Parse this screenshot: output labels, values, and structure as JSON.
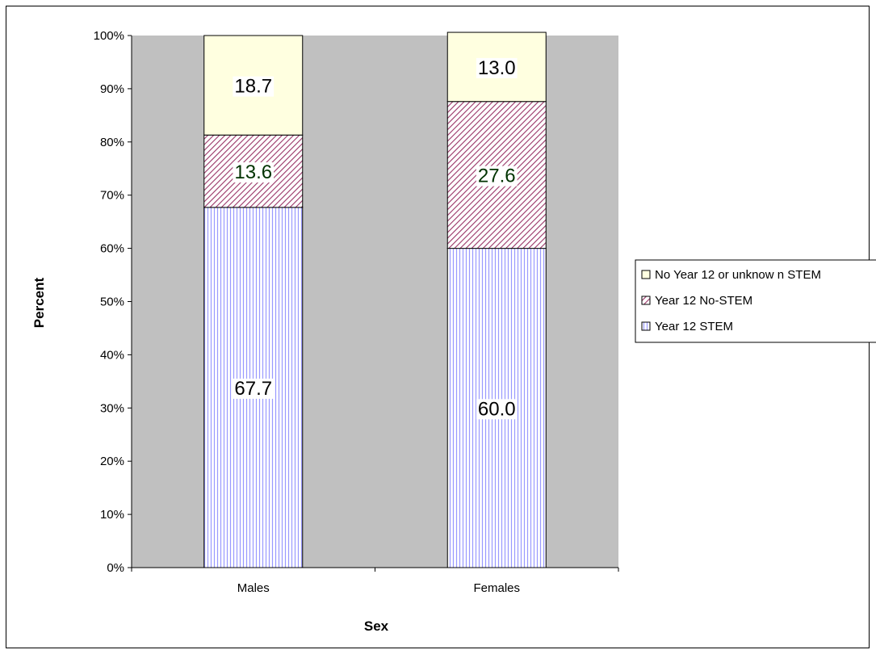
{
  "chart_data": {
    "type": "bar",
    "stacked": true,
    "percent_stacked": true,
    "title": "",
    "xlabel": "Sex",
    "ylabel": "Percent",
    "categories": [
      "Males",
      "Females"
    ],
    "ylim": [
      0,
      100
    ],
    "yticks": [
      "0%",
      "10%",
      "20%",
      "30%",
      "40%",
      "50%",
      "60%",
      "70%",
      "80%",
      "90%",
      "100%"
    ],
    "series": [
      {
        "name": "Year 12 STEM",
        "values": [
          67.7,
          60.0
        ],
        "labels": [
          "67.7",
          "60.0"
        ],
        "fill": "#ffffff",
        "pattern_color": "#9999ff",
        "pattern": "vertical-lines",
        "label_color": "#000000"
      },
      {
        "name": "Year 12 No-STEM",
        "values": [
          13.6,
          27.6
        ],
        "labels": [
          "13.6",
          "27.6"
        ],
        "fill": "#ffffff",
        "pattern_color": "#993366",
        "pattern": "diagonal-lines",
        "label_color": "#003300"
      },
      {
        "name": "No Year 12 or unknow n STEM",
        "values": [
          18.7,
          13.0
        ],
        "labels": [
          "18.7",
          "13.0"
        ],
        "fill": "#ffffe0",
        "pattern_color": "#ffffe0",
        "pattern": "solid",
        "label_color": "#000000"
      }
    ],
    "legend_order": [
      "No Year 12 or unknow n STEM",
      "Year 12 No-STEM",
      "Year 12 STEM"
    ],
    "legend_position": "right",
    "plot_background": "#c0c0c0",
    "grid": false
  }
}
